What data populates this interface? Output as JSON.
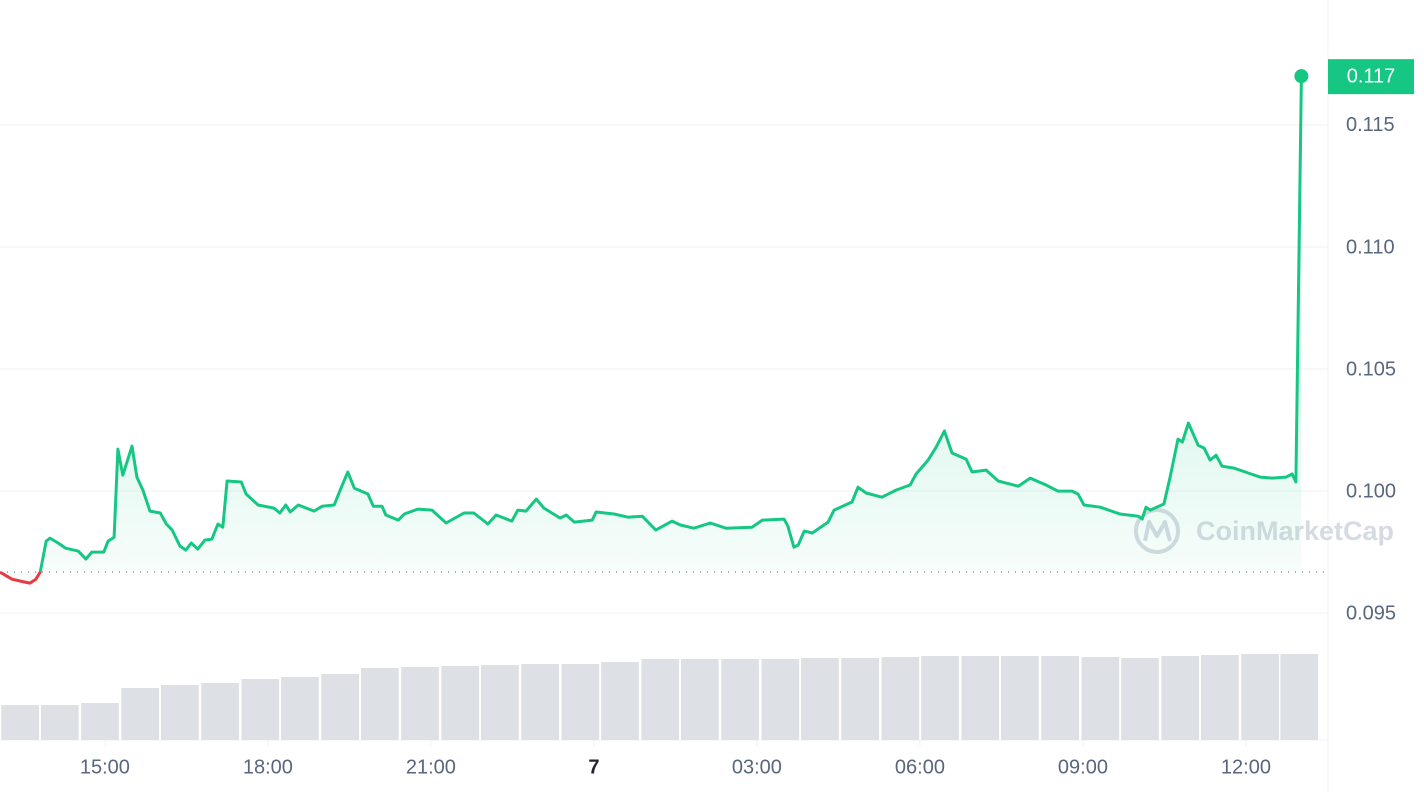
{
  "chart_data": {
    "type": "line",
    "x": [
      13.07,
      13.29,
      13.53,
      13.62,
      13.73,
      13.81,
      13.92,
      13.99,
      14.14,
      14.28,
      14.51,
      14.65,
      14.76,
      14.98,
      15.06,
      15.17,
      15.24,
      15.33,
      15.5,
      15.59,
      15.7,
      15.83,
      16.02,
      16.13,
      16.24,
      16.38,
      16.49,
      16.59,
      16.71,
      16.84,
      16.97,
      17.08,
      17.17,
      17.25,
      17.51,
      17.6,
      17.82,
      18.11,
      18.22,
      18.33,
      18.41,
      18.56,
      18.85,
      19.0,
      19.22,
      19.33,
      19.47,
      19.59,
      19.84,
      19.94,
      20.1,
      20.17,
      20.4,
      20.51,
      20.76,
      21.02,
      21.28,
      21.61,
      21.79,
      22.05,
      22.2,
      22.49,
      22.6,
      22.75,
      22.94,
      23.08,
      23.38,
      23.49,
      23.64,
      23.97,
      24.04,
      24.37,
      24.63,
      24.89,
      25.14,
      25.44,
      25.59,
      25.84,
      26.14,
      26.43,
      26.91,
      27.1,
      27.5,
      27.57,
      27.68,
      27.76,
      27.87,
      28.02,
      28.31,
      28.42,
      28.75,
      28.86,
      29.01,
      29.3,
      29.56,
      29.82,
      29.93,
      30.15,
      30.3,
      30.45,
      30.59,
      30.85,
      30.96,
      31.22,
      31.44,
      31.81,
      32.03,
      32.32,
      32.54,
      32.8,
      32.91,
      33.02,
      33.32,
      33.68,
      34.02,
      34.09,
      34.16,
      34.24,
      34.49,
      34.6,
      34.75,
      34.83,
      34.94,
      35.12,
      35.23,
      35.34,
      35.45,
      35.56,
      35.78,
      36.04,
      36.26,
      36.48,
      36.74,
      36.85,
      36.92,
      37.02
    ],
    "values": [
      0.09668,
      0.09639,
      0.09627,
      0.09623,
      0.09639,
      0.09668,
      0.09795,
      0.09807,
      0.09787,
      0.09766,
      0.09754,
      0.09721,
      0.0975,
      0.0975,
      0.09795,
      0.09811,
      0.10172,
      0.10065,
      0.10184,
      0.10057,
      0.10004,
      0.09918,
      0.0991,
      0.09865,
      0.0984,
      0.09775,
      0.09758,
      0.09787,
      0.09762,
      0.09799,
      0.09803,
      0.09865,
      0.09852,
      0.10041,
      0.10037,
      0.09988,
      0.09943,
      0.0993,
      0.0991,
      0.09943,
      0.09914,
      0.09943,
      0.09918,
      0.09938,
      0.09943,
      0.10004,
      0.10078,
      0.10012,
      0.09988,
      0.09938,
      0.09938,
      0.09902,
      0.09881,
      0.09906,
      0.09926,
      0.09922,
      0.09869,
      0.0991,
      0.0991,
      0.09865,
      0.09902,
      0.09877,
      0.09922,
      0.09918,
      0.09967,
      0.0993,
      0.09889,
      0.09902,
      0.09873,
      0.09881,
      0.09914,
      0.09906,
      0.09893,
      0.09897,
      0.0984,
      0.09877,
      0.09861,
      0.09848,
      0.09869,
      0.09848,
      0.09852,
      0.09881,
      0.09885,
      0.09856,
      0.0977,
      0.09779,
      0.09836,
      0.09828,
      0.09873,
      0.09922,
      0.09955,
      0.10016,
      0.09992,
      0.09975,
      0.10004,
      0.10025,
      0.1007,
      0.10127,
      0.1018,
      0.10246,
      0.10156,
      0.10131,
      0.10078,
      0.10086,
      0.10041,
      0.1002,
      0.10053,
      0.10025,
      0.1,
      0.1,
      0.09988,
      0.09943,
      0.09934,
      0.09906,
      0.09897,
      0.09885,
      0.09934,
      0.09922,
      0.09947,
      0.10053,
      0.10213,
      0.10201,
      0.10279,
      0.10188,
      0.10176,
      0.10127,
      0.10147,
      0.10102,
      0.10094,
      0.10074,
      0.10057,
      0.10053,
      0.10057,
      0.1007,
      0.10037,
      0.117
    ],
    "color": "#16c784",
    "down_color": "#ea3943",
    "reference_line": 0.09668,
    "xlim": [
      13.07,
      37.51
    ],
    "xticks": [
      {
        "value": 15,
        "label": "15:00"
      },
      {
        "value": 18,
        "label": "18:00"
      },
      {
        "value": 21,
        "label": "21:00"
      },
      {
        "value": 24,
        "label": "7"
      },
      {
        "value": 27,
        "label": "03:00"
      },
      {
        "value": 30,
        "label": "06:00"
      },
      {
        "value": 33,
        "label": "09:00"
      },
      {
        "value": 36,
        "label": "12:00"
      }
    ],
    "ylim": [
      0.0898,
      0.12012
    ],
    "yticks": [
      0.095,
      {
        "value": 0.1,
        "label": "0.100"
      },
      0.105,
      {
        "value": 0.11,
        "label": "0.110"
      },
      0.115
    ],
    "grid": true,
    "volume": {
      "axis": "y2",
      "color": "#dde0e5",
      "x": [
        13.44,
        14.17,
        14.91,
        15.65,
        16.38,
        17.12,
        17.86,
        18.59,
        19.33,
        20.06,
        20.8,
        21.54,
        22.27,
        23.01,
        23.75,
        24.48,
        25.22,
        25.95,
        26.69,
        27.43,
        28.16,
        28.9,
        29.64,
        30.37,
        31.11,
        31.84,
        32.58,
        33.32,
        34.05,
        34.79,
        35.52,
        36.26,
        36.98
      ],
      "values": [
        35,
        35,
        37,
        52,
        55,
        57,
        61,
        63,
        66,
        72,
        73,
        74,
        75,
        76,
        76,
        78,
        81,
        81,
        81,
        81,
        82,
        82,
        83,
        84,
        84,
        84,
        84,
        83,
        82,
        84,
        85,
        86,
        86
      ]
    },
    "y2lim": [
      0,
      120
    ],
    "watermark": "CoinMarketCap"
  }
}
